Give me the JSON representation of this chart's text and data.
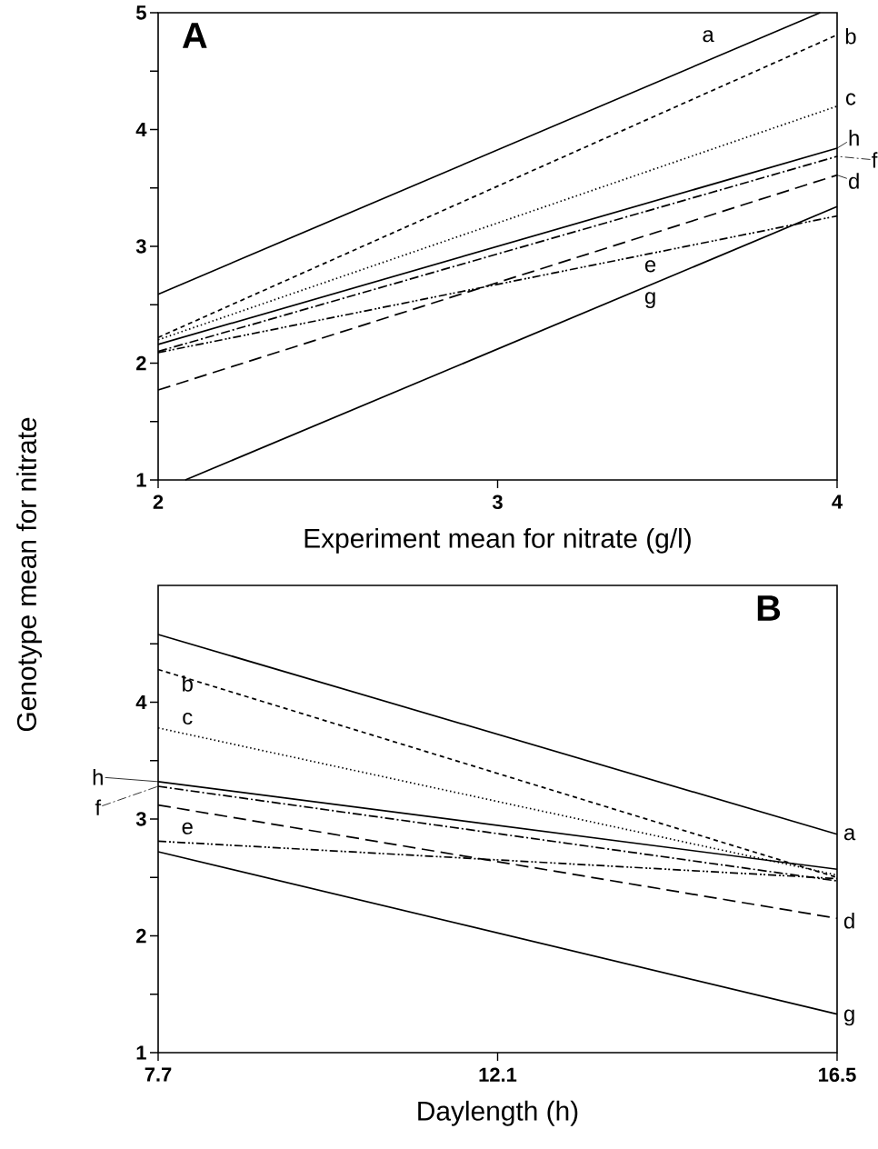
{
  "chart_data": [
    {
      "type": "line",
      "title": "A",
      "xlabel": "Experiment mean for nitrate (g/l)",
      "ylabel": "Genotype mean for nitrate",
      "legend": "right",
      "x": [
        2,
        4
      ],
      "xlim": [
        2,
        4
      ],
      "ylim": [
        1,
        5
      ],
      "xticks": [
        2,
        3,
        4
      ],
      "yticks": [
        1,
        {
          "value": 1.5,
          "label": null
        },
        2,
        {
          "value": 2.5,
          "label": null
        },
        3,
        {
          "value": 3.5,
          "label": null
        },
        4,
        {
          "value": 4.5,
          "label": null
        },
        5
      ],
      "series": [
        {
          "name": "a",
          "color": "#000000",
          "line_style": "solid",
          "x": [
            2,
            3.95
          ],
          "values": [
            2.59,
            5
          ]
        },
        {
          "name": "b",
          "color": "#000000",
          "line_style": "dashed",
          "values": [
            2.22,
            4.81
          ]
        },
        {
          "name": "c",
          "color": "#000000",
          "line_style": "dotted",
          "values": [
            2.2,
            4.2
          ]
        },
        {
          "name": "d",
          "color": "#000000",
          "line_style": "longdash",
          "values": [
            1.77,
            3.61
          ]
        },
        {
          "name": "e",
          "color": "#000000",
          "line_style": "dashdotdot",
          "values": [
            2.09,
            3.26
          ]
        },
        {
          "name": "f",
          "color": "#000000",
          "line_style": "dashdot",
          "values": [
            2.1,
            3.77
          ]
        },
        {
          "name": "g",
          "color": "#000000",
          "line_style": "solid",
          "x": [
            2.08,
            4
          ],
          "values": [
            1,
            3.34
          ]
        },
        {
          "name": "h",
          "color": "#000000",
          "line_style": "solid",
          "values": [
            2.16,
            3.84
          ]
        }
      ]
    },
    {
      "type": "line",
      "title": "B",
      "xlabel": "Daylength (h)",
      "legend": "left",
      "x": [
        7.7,
        16.5
      ],
      "xlim": [
        7.7,
        16.5
      ],
      "ylim": [
        1,
        5
      ],
      "xticks": [
        7.7,
        12.1,
        16.5
      ],
      "yticks": [
        1,
        {
          "value": 1.5,
          "label": null
        },
        2,
        {
          "value": 2.5,
          "label": null
        },
        3,
        {
          "value": 3.5,
          "label": null
        },
        4,
        {
          "value": 4.5,
          "label": null
        }
      ],
      "series": [
        {
          "name": "a",
          "color": "#000000",
          "line_style": "solid",
          "values": [
            4.58,
            2.87
          ]
        },
        {
          "name": "b",
          "color": "#000000",
          "line_style": "dashed",
          "values": [
            4.28,
            2.5
          ]
        },
        {
          "name": "c",
          "color": "#000000",
          "line_style": "dotted",
          "values": [
            3.78,
            2.52
          ]
        },
        {
          "name": "d",
          "color": "#000000",
          "line_style": "longdash",
          "values": [
            3.12,
            2.15
          ]
        },
        {
          "name": "e",
          "color": "#000000",
          "line_style": "dashdotdot",
          "values": [
            2.81,
            2.49
          ]
        },
        {
          "name": "f",
          "color": "#000000",
          "line_style": "dashdot",
          "values": [
            3.28,
            2.47
          ]
        },
        {
          "name": "g",
          "color": "#000000",
          "line_style": "solid",
          "values": [
            2.72,
            1.33
          ]
        },
        {
          "name": "h",
          "color": "#000000",
          "line_style": "solid",
          "values": [
            3.32,
            2.57
          ]
        }
      ]
    }
  ]
}
